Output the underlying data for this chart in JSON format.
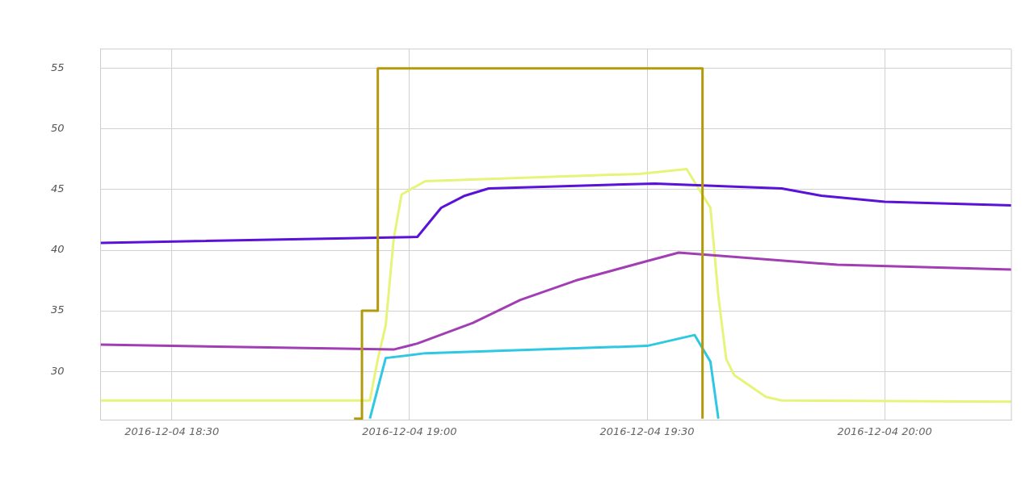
{
  "chart_data": {
    "type": "line",
    "xlim": [
      "2016-12-04T18:21",
      "2016-12-04T20:16"
    ],
    "ylim": [
      26,
      56.6
    ],
    "xticks": [
      {
        "value": "2016-12-04T18:30",
        "label": "2016-12-04 18:30"
      },
      {
        "value": "2016-12-04T19:00",
        "label": "2016-12-04 19:00"
      },
      {
        "value": "2016-12-04T19:30",
        "label": "2016-12-04 19:30"
      },
      {
        "value": "2016-12-04T20:00",
        "label": "2016-12-04 20:00"
      }
    ],
    "yticks": [
      30,
      35,
      40,
      45,
      50,
      55
    ],
    "grid": true,
    "legend": false,
    "marker": "none",
    "line_style": "solid",
    "series": [
      {
        "type": "step",
        "color": "#b39a0c",
        "x": [
          "2016-12-04T18:53",
          "2016-12-04T18:54",
          "2016-12-04T18:56",
          "2016-12-04T19:37"
        ],
        "values": [
          26.1,
          35,
          55,
          26.1
        ]
      },
      {
        "color": "#5a12d8",
        "x": [
          "2016-12-04T18:21",
          "2016-12-04T19:01",
          "2016-12-04T19:04",
          "2016-12-04T19:07",
          "2016-12-04T19:10",
          "2016-12-04T19:31",
          "2016-12-04T19:47",
          "2016-12-04T19:52",
          "2016-12-04T20:00",
          "2016-12-04T20:16"
        ],
        "values": [
          40.6,
          41.1,
          43.5,
          44.5,
          45.1,
          45.5,
          45.1,
          44.5,
          44.0,
          43.7
        ]
      },
      {
        "color": "#a13eb3",
        "x": [
          "2016-12-04T18:21",
          "2016-12-04T18:58",
          "2016-12-04T19:01",
          "2016-12-04T19:08",
          "2016-12-04T19:14",
          "2016-12-04T19:21",
          "2016-12-04T19:30",
          "2016-12-04T19:34",
          "2016-12-04T19:54",
          "2016-12-04T20:16"
        ],
        "values": [
          32.2,
          31.8,
          32.3,
          34.0,
          35.9,
          37.5,
          39.1,
          39.8,
          38.8,
          38.4
        ]
      },
      {
        "color": "#2ec8e2",
        "x": [
          "2016-12-04T18:55",
          "2016-12-04T18:57",
          "2016-12-04T19:02",
          "2016-12-04T19:30",
          "2016-12-04T19:36",
          "2016-12-04T19:38",
          "2016-12-04T19:39"
        ],
        "values": [
          26.1,
          31.1,
          31.5,
          32.1,
          33.0,
          30.8,
          26.1
        ]
      },
      {
        "color": "#e6f47a",
        "x": [
          "2016-12-04T18:21",
          "2016-12-04T18:55",
          "2016-12-04T18:56",
          "2016-12-04T18:57",
          "2016-12-04T18:58",
          "2016-12-04T18:59",
          "2016-12-04T19:02",
          "2016-12-04T19:29",
          "2016-12-04T19:35",
          "2016-12-04T19:38",
          "2016-12-04T19:39",
          "2016-12-04T19:40",
          "2016-12-04T19:41",
          "2016-12-04T19:45",
          "2016-12-04T19:47",
          "2016-12-04T20:16"
        ],
        "values": [
          27.6,
          27.6,
          31.0,
          33.8,
          40.9,
          44.6,
          45.7,
          46.3,
          46.7,
          43.5,
          36.2,
          31.0,
          29.7,
          27.9,
          27.6,
          27.5
        ]
      }
    ]
  }
}
